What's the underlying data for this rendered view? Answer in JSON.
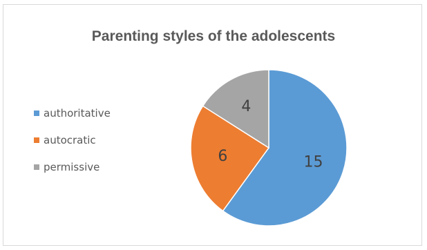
{
  "chart_data": {
    "type": "pie",
    "title": "Parenting styles of the adolescents",
    "categories": [
      "authoritative",
      "autocratic",
      "permissive"
    ],
    "values": [
      15,
      6,
      4
    ],
    "colors": [
      "#5B9BD5",
      "#ED7D31",
      "#A5A5A5"
    ],
    "data_labels": [
      "15",
      "6",
      "4"
    ],
    "legend_position": "left",
    "start_angle_deg": 0,
    "direction": "clockwise"
  }
}
